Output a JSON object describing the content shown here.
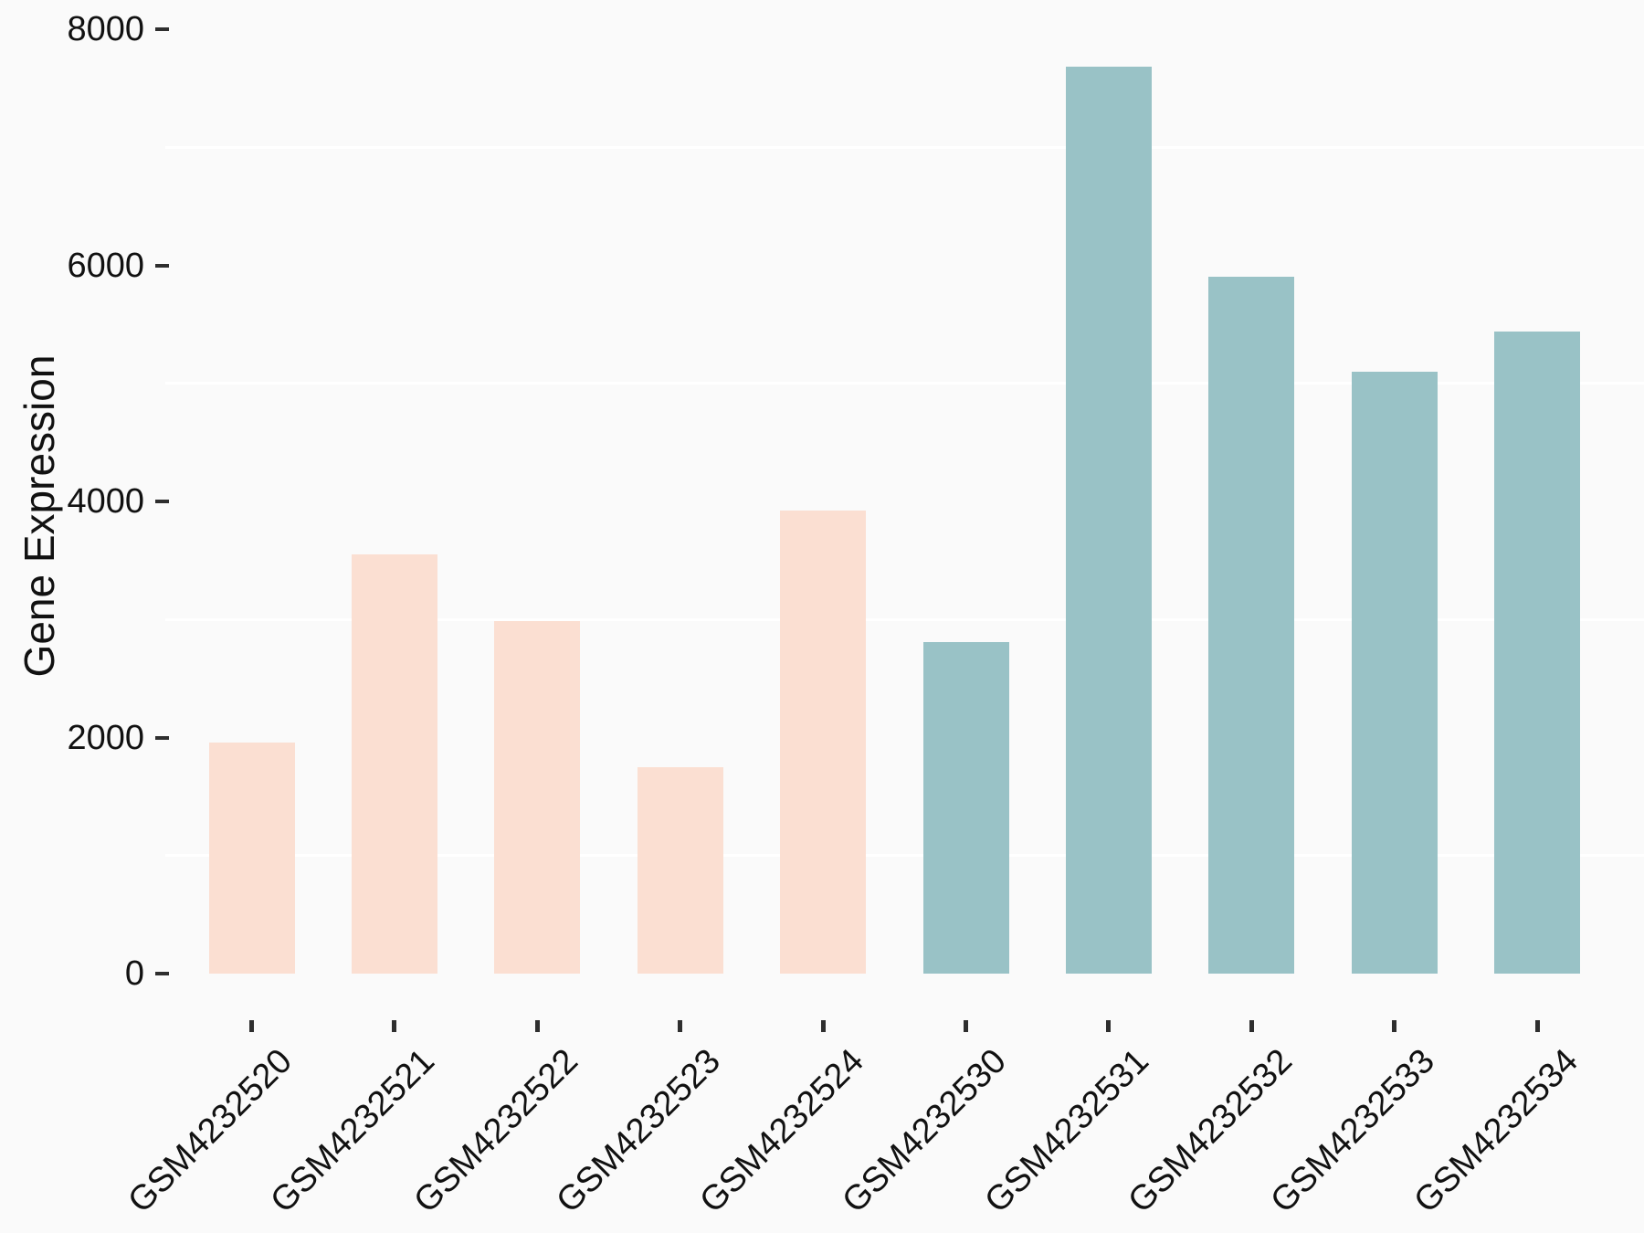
{
  "figure": {
    "background_color": "#FAFAFA",
    "gridline_color": "#FFFFFF",
    "axis_text_color": "#111111",
    "tick_mark_color": "#2E2E2E"
  },
  "chart_data": {
    "type": "bar",
    "title": "",
    "xlabel": "",
    "ylabel": "Gene Expression",
    "categories": [
      "GSM4232520",
      "GSM4232521",
      "GSM4232522",
      "GSM4232523",
      "GSM4232524",
      "GSM4232530",
      "GSM4232531",
      "GSM4232532",
      "GSM4232533",
      "GSM4232534"
    ],
    "values": [
      1960,
      3550,
      2990,
      1750,
      3920,
      2810,
      7680,
      5900,
      5100,
      5440
    ],
    "bar_colors": [
      "#FBDFD2",
      "#FBDFD2",
      "#FBDFD2",
      "#FBDFD2",
      "#FBDFD2",
      "#99C2C6",
      "#99C2C6",
      "#99C2C6",
      "#99C2C6",
      "#99C2C6"
    ],
    "group_colors": {
      "samples_2520_2524": "#FBDFD2",
      "samples_2530_2534": "#99C2C6"
    },
    "yticks": [
      0,
      2000,
      4000,
      6000,
      8000
    ],
    "minor_gridlines": [
      1000,
      3000,
      5000,
      7000
    ],
    "ylim": [
      0,
      8250
    ],
    "x_tick_angle": 45,
    "legend": "none",
    "grid": "horizontal minor gridlines only, white on light gray"
  }
}
